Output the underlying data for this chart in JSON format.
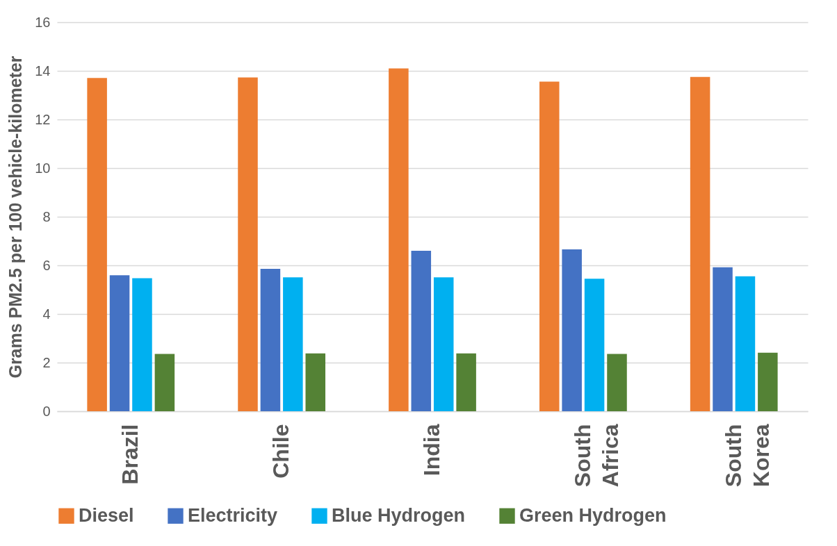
{
  "chart_data": {
    "type": "bar",
    "ylabel": "Grams PM2.5 per 100 vehicle-kilometer",
    "categories": [
      "Brazil",
      "Chile",
      "India",
      "South Africa",
      "South Korea"
    ],
    "series": [
      {
        "name": "Diesel",
        "color": "#ed7d31",
        "values": [
          13.71,
          13.73,
          14.1,
          13.56,
          13.75
        ]
      },
      {
        "name": "Electricity",
        "color": "#4472c4",
        "values": [
          5.59,
          5.86,
          6.6,
          6.66,
          5.92
        ]
      },
      {
        "name": "Blue Hydrogen",
        "color": "#00b0f0",
        "values": [
          5.47,
          5.51,
          5.51,
          5.45,
          5.55
        ]
      },
      {
        "name": "Green Hydrogen",
        "color": "#548235",
        "values": [
          2.36,
          2.38,
          2.38,
          2.36,
          2.41
        ]
      }
    ],
    "ylim": [
      0,
      16
    ],
    "yticks": [
      0,
      2,
      4,
      6,
      8,
      10,
      12,
      14,
      16
    ],
    "grid": "y",
    "legend": "bottom"
  }
}
